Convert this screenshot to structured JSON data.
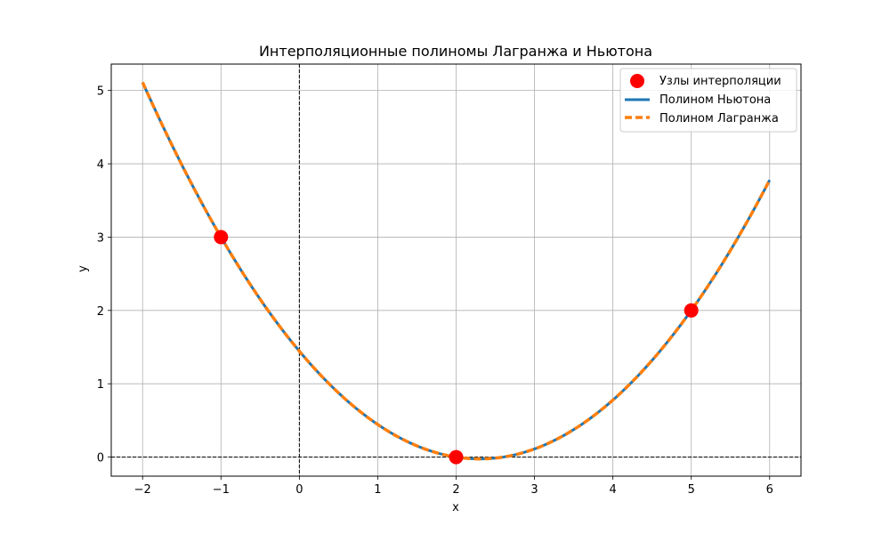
{
  "chart_data": {
    "type": "line",
    "title": "Интерполяционные полиномы Лагранжа и Ньютона",
    "xlabel": "x",
    "ylabel": "y",
    "xlim": [
      -2.4,
      6.4
    ],
    "ylim": [
      -0.26,
      5.36
    ],
    "x_ticks": [
      -2,
      -1,
      0,
      1,
      2,
      3,
      4,
      5,
      6
    ],
    "y_ticks": [
      0,
      1,
      2,
      3,
      4,
      5
    ],
    "grid": true,
    "legend_position": "top-right",
    "reference_lines": {
      "x": 0,
      "y": 0
    },
    "nodes": {
      "name": "Узлы интерполяции",
      "color": "#ff0000",
      "points": [
        {
          "x": -1,
          "y": 3
        },
        {
          "x": 2,
          "y": 0
        },
        {
          "x": 5,
          "y": 2
        }
      ]
    },
    "series": [
      {
        "name": "Полином Ньютона",
        "color": "#1f77b4",
        "style": "solid",
        "x_range": [
          -2,
          6
        ],
        "polynomial_coefficients": [
          0.2778,
          -1.2778,
          1.4444
        ]
      },
      {
        "name": "Полином Лагранжа",
        "color": "#ff7f0e",
        "style": "dashed",
        "x_range": [
          -2,
          6
        ],
        "polynomial_coefficients": [
          0.2778,
          -1.2778,
          1.4444
        ]
      }
    ]
  }
}
